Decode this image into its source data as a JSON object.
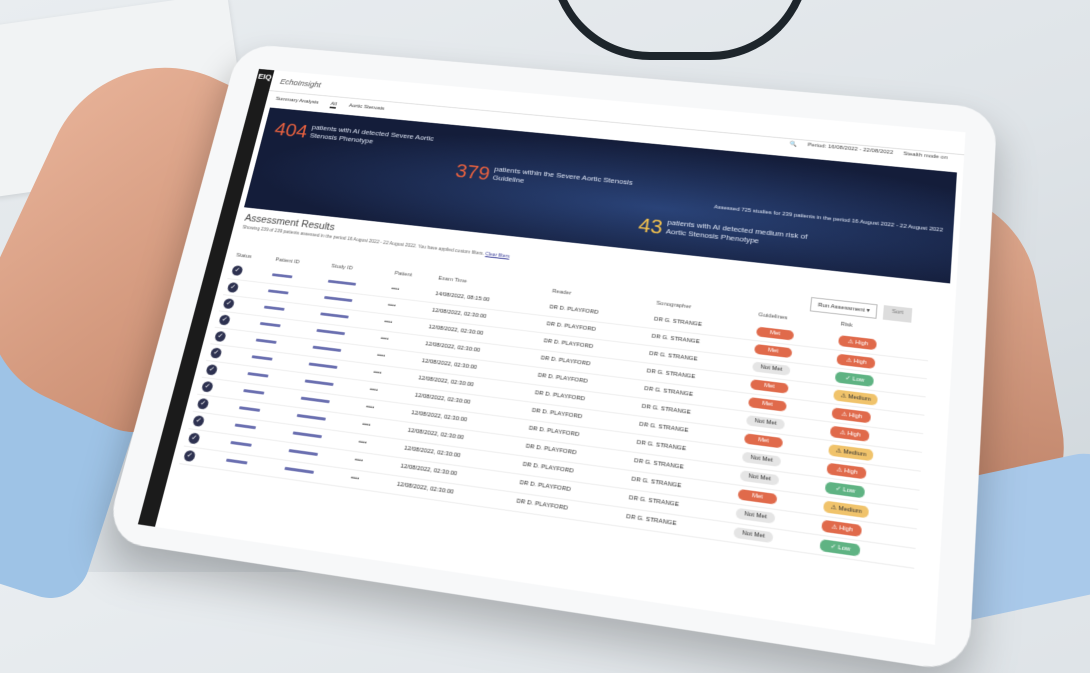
{
  "app": {
    "logo": "EIQ",
    "title": "EchoInsight"
  },
  "tabs": [
    {
      "label": "Summary Analysis"
    },
    {
      "label": "All"
    },
    {
      "label": "Aortic Stenosis"
    }
  ],
  "header": {
    "period": "Period: 16/08/2022 - 22/08/2022",
    "stealth": "Stealth mode on"
  },
  "banner": {
    "stats": [
      {
        "value": "404",
        "text": "patients with AI detected Severe Aortic Stenosis Phenotype",
        "color": "#e8613f"
      },
      {
        "value": "379",
        "text": "patients within the Severe Aortic Stenosis Guideline",
        "color": "#e8613f"
      },
      {
        "value": "43",
        "text": "patients with AI detected medium risk of Aortic Stenosis Phenotype",
        "color": "#f2c14e"
      }
    ],
    "assessed": "Assessed 725 studies for 239 patients in the period 16 August 2022 - 22 August 2022"
  },
  "results": {
    "title": "Assessment Results",
    "subtitle": "Showing 239 of 239 patients assessed in the period 16 August 2022 - 22 August 2022. You have applied custom filters.",
    "clear_filters": "Clear filters"
  },
  "actions": {
    "run": "Run Assessment",
    "sort": "Sort"
  },
  "columns": [
    "Status",
    "Patient ID",
    "Study ID",
    "Patient",
    "Exam Time",
    "Reader",
    "Sonographer",
    "Guidelines",
    "Risk"
  ],
  "rows": [
    {
      "time": "14/08/2022, 08:15:00",
      "reader": "DR D. PLAYFORD",
      "sono": "DR G. STRANGE",
      "guideline": "Met",
      "risk": "High"
    },
    {
      "time": "12/08/2022, 02:30:00",
      "reader": "DR D. PLAYFORD",
      "sono": "DR G. STRANGE",
      "guideline": "Met",
      "risk": "High"
    },
    {
      "time": "12/08/2022, 02:30:00",
      "reader": "DR D. PLAYFORD",
      "sono": "DR G. STRANGE",
      "guideline": "Not Met",
      "risk": "Low"
    },
    {
      "time": "12/08/2022, 02:30:00",
      "reader": "DR D. PLAYFORD",
      "sono": "DR G. STRANGE",
      "guideline": "Met",
      "risk": "Medium"
    },
    {
      "time": "12/08/2022, 02:30:00",
      "reader": "DR D. PLAYFORD",
      "sono": "DR G. STRANGE",
      "guideline": "Met",
      "risk": "High"
    },
    {
      "time": "12/08/2022, 02:30:00",
      "reader": "DR D. PLAYFORD",
      "sono": "DR G. STRANGE",
      "guideline": "Not Met",
      "risk": "High"
    },
    {
      "time": "12/08/2022, 02:30:00",
      "reader": "DR D. PLAYFORD",
      "sono": "DR G. STRANGE",
      "guideline": "Met",
      "risk": "Medium"
    },
    {
      "time": "12/08/2022, 02:30:00",
      "reader": "DR D. PLAYFORD",
      "sono": "DR G. STRANGE",
      "guideline": "Not Met",
      "risk": "High"
    },
    {
      "time": "12/08/2022, 02:30:00",
      "reader": "DR D. PLAYFORD",
      "sono": "DR G. STRANGE",
      "guideline": "Not Met",
      "risk": "Low"
    },
    {
      "time": "12/08/2022, 02:30:00",
      "reader": "DR D. PLAYFORD",
      "sono": "DR G. STRANGE",
      "guideline": "Met",
      "risk": "Medium"
    },
    {
      "time": "12/08/2022, 02:30:00",
      "reader": "DR D. PLAYFORD",
      "sono": "DR G. STRANGE",
      "guideline": "Not Met",
      "risk": "High"
    },
    {
      "time": "12/08/2022, 02:30:00",
      "reader": "DR D. PLAYFORD",
      "sono": "DR G. STRANGE",
      "guideline": "Not Met",
      "risk": "Low"
    }
  ]
}
